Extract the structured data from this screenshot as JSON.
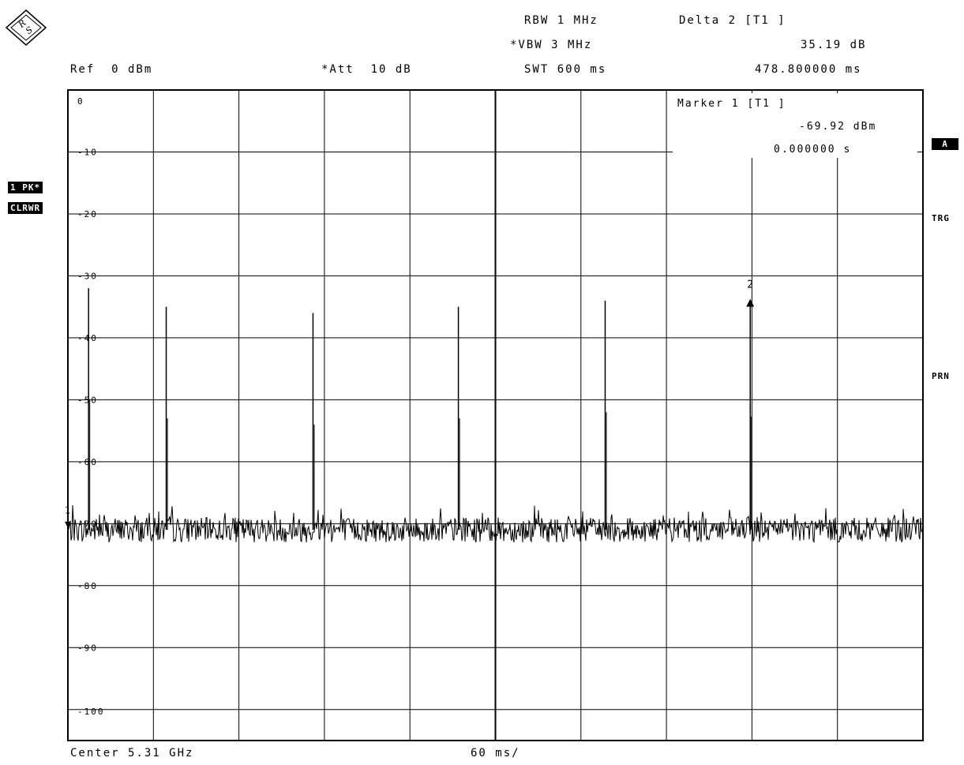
{
  "header": {
    "rbw": "RBW 1 MHz",
    "vbw": "*VBW 3 MHz",
    "swt": "SWT 600 ms",
    "ref": "Ref  0 dBm",
    "att": "*Att  10 dB",
    "delta_title": "Delta 2 [T1 ]",
    "delta_value": "35.19 dB",
    "delta_time": "478.800000 ms"
  },
  "marker_box": {
    "title": "Marker 1 [T1 ]",
    "value": "-69.92 dBm",
    "time": "0.000000 s"
  },
  "left_labels": {
    "trace": "1 PK*",
    "mode": "CLRWR"
  },
  "right_labels": {
    "a": "A",
    "trg": "TRG",
    "prn": "PRN"
  },
  "footer": {
    "center": "Center 5.31 GHz",
    "per_div": "60 ms/"
  },
  "marker_labels": {
    "m1": "1",
    "m2": "2"
  },
  "chart_data": {
    "type": "line",
    "title": "",
    "xlabel": "",
    "ylabel": "",
    "xlim": [
      0,
      600
    ],
    "ylim": [
      -105,
      0
    ],
    "grid": true,
    "y_ticks": [
      0,
      -10,
      -20,
      -30,
      -40,
      -50,
      -60,
      -70,
      -80,
      -90,
      -100
    ],
    "y_tick_labels": [
      "0",
      "-10",
      "-20",
      "-30",
      "-40",
      "-50",
      "-60",
      "-70",
      "-80",
      "-90",
      "-100"
    ],
    "noise_floor_dbm": -71,
    "pulses": [
      {
        "t_ms": 14.5,
        "peak_dbm": -32
      },
      {
        "t_ms": 69,
        "peak_dbm": -35
      },
      {
        "t_ms": 172,
        "peak_dbm": -36
      },
      {
        "t_ms": 274,
        "peak_dbm": -35
      },
      {
        "t_ms": 377,
        "peak_dbm": -34
      },
      {
        "t_ms": 478.8,
        "peak_dbm": -34.7
      }
    ],
    "markers": [
      {
        "name": "1",
        "t_ms": 0,
        "level_dbm": -69.92
      },
      {
        "name": "2",
        "t_ms": 478.8,
        "level_dbm": -34.73
      }
    ]
  }
}
